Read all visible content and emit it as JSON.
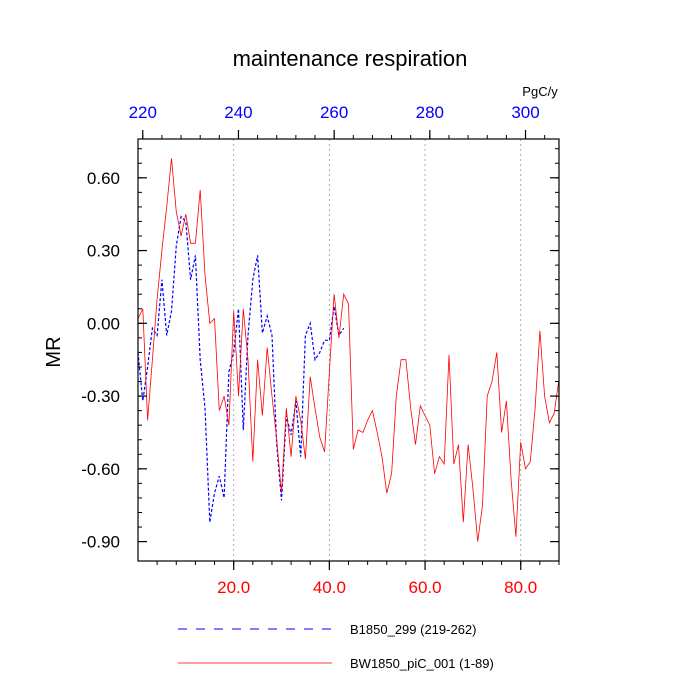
{
  "chart_data": {
    "type": "line",
    "title": "maintenance respiration",
    "ylabel": "MR",
    "top_axis_unit": "PgC/y",
    "ylim": [
      -0.98,
      0.76
    ],
    "xlim": [
      0,
      88
    ],
    "yticks": [
      0.6,
      0.3,
      0.0,
      -0.3,
      -0.6,
      -0.9
    ],
    "ytick_labels": [
      "0.60",
      "0.30",
      "0.00",
      "-0.30",
      "-0.60",
      "-0.90"
    ],
    "xticks": [
      20,
      40,
      60,
      80
    ],
    "xtick_labels": [
      "20.0",
      "40.0",
      "60.0",
      "80.0"
    ],
    "top_ticks": [
      220,
      240,
      260,
      280,
      300
    ],
    "top_tick_labels": [
      "220",
      "240",
      "260",
      "280",
      "300"
    ],
    "top_axis_offset": 219,
    "grid": "vertical dotted at bottom ticks",
    "legend_placement": "bottom",
    "colors": {
      "series_blue": "#0000ff",
      "series_red": "#ff0000",
      "bottom_ticks": "#ff0000",
      "top_ticks": "#0000ff"
    },
    "series": [
      {
        "name": "B1850_299 (219-262)",
        "style": "dashed",
        "color": "#0000ff",
        "x": [
          0,
          1,
          2,
          3,
          4,
          5,
          6,
          7,
          8,
          9,
          10,
          11,
          12,
          13,
          14,
          15,
          16,
          17,
          18,
          19,
          20,
          21,
          22,
          23,
          24,
          25,
          26,
          27,
          28,
          29,
          30,
          31,
          32,
          33,
          34,
          35,
          36,
          37,
          38,
          39,
          40,
          41,
          42,
          43
        ],
        "values": [
          -0.12,
          -0.32,
          -0.18,
          -0.02,
          -0.05,
          0.18,
          -0.05,
          0.05,
          0.32,
          0.44,
          0.42,
          0.18,
          0.28,
          -0.15,
          -0.35,
          -0.82,
          -0.7,
          -0.63,
          -0.72,
          -0.2,
          -0.12,
          0.06,
          -0.44,
          -0.05,
          0.18,
          0.28,
          -0.04,
          0.03,
          -0.05,
          -0.5,
          -0.73,
          -0.38,
          -0.46,
          -0.32,
          -0.55,
          -0.05,
          0.0,
          -0.15,
          -0.12,
          -0.07,
          -0.07,
          0.07,
          -0.05,
          -0.02
        ]
      },
      {
        "name": "BW1850_piC_001 (1-89)",
        "style": "solid",
        "color": "#ff0000",
        "x": [
          0,
          1,
          2,
          3,
          4,
          5,
          6,
          7,
          8,
          9,
          10,
          11,
          12,
          13,
          14,
          15,
          16,
          17,
          18,
          19,
          20,
          21,
          22,
          23,
          24,
          25,
          26,
          27,
          28,
          29,
          30,
          31,
          32,
          33,
          34,
          35,
          36,
          37,
          38,
          39,
          40,
          41,
          42,
          43,
          44,
          45,
          46,
          47,
          48,
          49,
          50,
          51,
          52,
          53,
          54,
          55,
          56,
          57,
          58,
          59,
          60,
          61,
          62,
          63,
          64,
          65,
          66,
          67,
          68,
          69,
          70,
          71,
          72,
          73,
          74,
          75,
          76,
          77,
          78,
          79,
          80,
          81,
          82,
          83,
          84,
          85,
          86,
          87,
          88
        ],
        "values": [
          0.02,
          0.06,
          -0.4,
          -0.15,
          0.1,
          0.3,
          0.48,
          0.68,
          0.46,
          0.36,
          0.45,
          0.33,
          0.33,
          0.55,
          0.2,
          0.0,
          0.02,
          -0.36,
          -0.3,
          -0.42,
          0.05,
          -0.3,
          0.06,
          -0.15,
          -0.57,
          -0.15,
          -0.38,
          -0.1,
          -0.3,
          -0.48,
          -0.7,
          -0.35,
          -0.55,
          -0.3,
          -0.4,
          -0.56,
          -0.22,
          -0.35,
          -0.47,
          -0.53,
          -0.2,
          0.12,
          -0.06,
          0.12,
          0.08,
          -0.52,
          -0.44,
          -0.45,
          -0.4,
          -0.36,
          -0.45,
          -0.55,
          -0.7,
          -0.62,
          -0.3,
          -0.15,
          -0.15,
          -0.35,
          -0.5,
          -0.34,
          -0.38,
          -0.42,
          -0.62,
          -0.55,
          -0.58,
          -0.13,
          -0.58,
          -0.5,
          -0.82,
          -0.5,
          -0.68,
          -0.9,
          -0.75,
          -0.3,
          -0.24,
          -0.12,
          -0.45,
          -0.32,
          -0.65,
          -0.88,
          -0.49,
          -0.6,
          -0.57,
          -0.35,
          -0.03,
          -0.3,
          -0.41,
          -0.37,
          -0.23
        ]
      }
    ]
  }
}
